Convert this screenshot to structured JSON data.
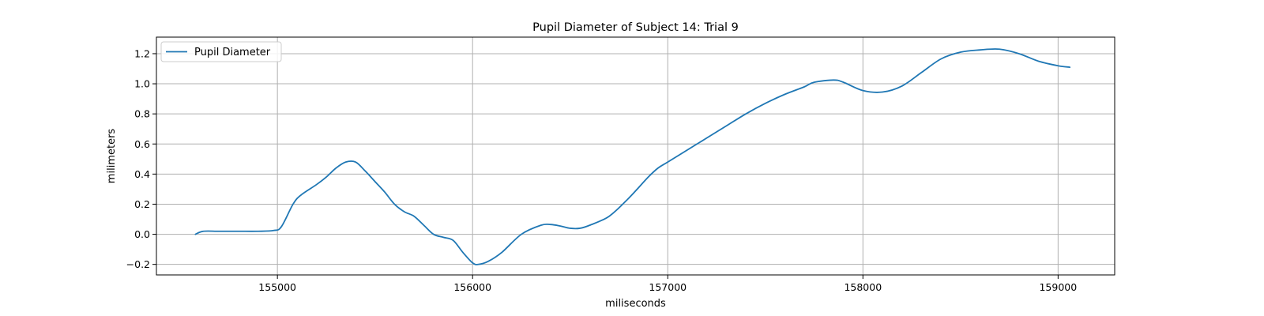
{
  "chart_data": {
    "type": "line",
    "title": "Pupil Diameter of Subject 14: Trial 9",
    "xlabel": "miliseconds",
    "ylabel": "milimeters",
    "xlim": [
      154380,
      159290
    ],
    "ylim": [
      -0.27,
      1.31
    ],
    "xticks": [
      155000,
      156000,
      157000,
      158000,
      159000
    ],
    "yticks": [
      -0.2,
      0.0,
      0.2,
      0.4,
      0.6,
      0.8,
      1.0,
      1.2
    ],
    "ytick_labels": [
      "−0.2",
      "0.0",
      "0.2",
      "0.4",
      "0.6",
      "0.8",
      "1.0",
      "1.2"
    ],
    "grid": true,
    "legend": "top-left",
    "series": [
      {
        "name": "Pupil Diameter",
        "color": "#1f77b4",
        "x": [
          154580,
          154620,
          154700,
          154800,
          154900,
          154980,
          155020,
          155080,
          155120,
          155200,
          155250,
          155300,
          155350,
          155400,
          155450,
          155500,
          155550,
          155600,
          155650,
          155700,
          155750,
          155800,
          155850,
          155900,
          155950,
          156000,
          156030,
          156080,
          156150,
          156250,
          156350,
          156400,
          156450,
          156500,
          156550,
          156600,
          156700,
          156800,
          156900,
          156950,
          157000,
          157100,
          157200,
          157300,
          157400,
          157500,
          157600,
          157700,
          157750,
          157850,
          157900,
          158000,
          158100,
          158200,
          158300,
          158400,
          158500,
          158600,
          158700,
          158800,
          158900,
          159000,
          159060
        ],
        "values": [
          0.0,
          0.02,
          0.02,
          0.02,
          0.02,
          0.025,
          0.05,
          0.2,
          0.26,
          0.33,
          0.38,
          0.44,
          0.48,
          0.48,
          0.42,
          0.35,
          0.28,
          0.2,
          0.15,
          0.12,
          0.06,
          0.0,
          -0.02,
          -0.04,
          -0.12,
          -0.19,
          -0.2,
          -0.18,
          -0.12,
          0.0,
          0.06,
          0.065,
          0.055,
          0.04,
          0.04,
          0.06,
          0.12,
          0.24,
          0.38,
          0.44,
          0.48,
          0.56,
          0.64,
          0.72,
          0.8,
          0.87,
          0.93,
          0.98,
          1.01,
          1.025,
          1.01,
          0.955,
          0.945,
          0.985,
          1.075,
          1.165,
          1.21,
          1.225,
          1.23,
          1.2,
          1.15,
          1.12,
          1.11
        ]
      }
    ]
  }
}
